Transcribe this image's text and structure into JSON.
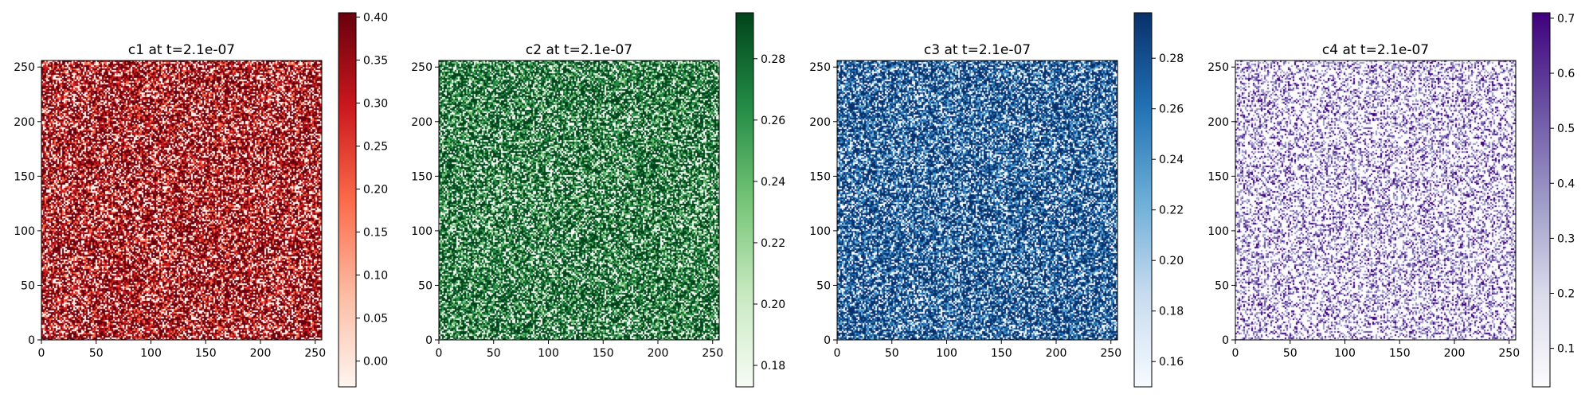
{
  "chart_data": [
    {
      "type": "heatmap",
      "title": "c1 at t=2.1e-07",
      "grid": false,
      "xlim": [
        0,
        256
      ],
      "ylim": [
        0,
        256
      ],
      "x_ticks": [
        "0",
        "50",
        "100",
        "150",
        "200",
        "250"
      ],
      "y_ticks": [
        "0",
        "50",
        "100",
        "150",
        "200",
        "250"
      ],
      "pattern": "fine random noise, mostly dark red with light pink speckles",
      "colormap": "Reds",
      "colors": [
        "#fff5f0",
        "#fcbba1",
        "#fb6a4a",
        "#cb181d",
        "#67000d"
      ],
      "colorbar": {
        "range": [
          -0.03,
          0.405
        ],
        "ticks": [
          0.0,
          0.05,
          0.1,
          0.15,
          0.2,
          0.25,
          0.3,
          0.35,
          0.4
        ],
        "tick_labels": [
          "0.00",
          "0.05",
          "0.10",
          "0.15",
          "0.20",
          "0.25",
          "0.30",
          "0.35",
          "0.40"
        ]
      }
    },
    {
      "type": "heatmap",
      "title": "c2 at t=2.1e-07",
      "grid": false,
      "xlim": [
        0,
        256
      ],
      "ylim": [
        0,
        256
      ],
      "x_ticks": [
        "0",
        "50",
        "100",
        "150",
        "200",
        "250"
      ],
      "y_ticks": [
        "0",
        "50",
        "100",
        "150",
        "200",
        "250"
      ],
      "pattern": "fine random noise, green and dark green speckles",
      "colormap": "Greens",
      "colors": [
        "#f7fcf5",
        "#c7e9c0",
        "#74c476",
        "#238b45",
        "#00441b"
      ],
      "colorbar": {
        "range": [
          0.173,
          0.295
        ],
        "ticks": [
          0.18,
          0.2,
          0.22,
          0.24,
          0.26,
          0.28
        ],
        "tick_labels": [
          "0.18",
          "0.20",
          "0.22",
          "0.24",
          "0.26",
          "0.28"
        ]
      }
    },
    {
      "type": "heatmap",
      "title": "c3 at t=2.1e-07",
      "grid": false,
      "xlim": [
        0,
        256
      ],
      "ylim": [
        0,
        256
      ],
      "x_ticks": [
        "0",
        "50",
        "100",
        "150",
        "200",
        "250"
      ],
      "y_ticks": [
        "0",
        "50",
        "100",
        "150",
        "200",
        "250"
      ],
      "pattern": "fine random noise, dark blue with light blue speckles",
      "colormap": "Blues",
      "colors": [
        "#f7fbff",
        "#c6dbef",
        "#6baed6",
        "#2171b5",
        "#08306b"
      ],
      "colorbar": {
        "range": [
          0.15,
          0.298
        ],
        "ticks": [
          0.16,
          0.18,
          0.2,
          0.22,
          0.24,
          0.26,
          0.28
        ],
        "tick_labels": [
          "0.16",
          "0.18",
          "0.20",
          "0.22",
          "0.24",
          "0.26",
          "0.28"
        ]
      }
    },
    {
      "type": "heatmap",
      "title": "c4 at t=2.1e-07",
      "grid": false,
      "xlim": [
        0,
        256
      ],
      "ylim": [
        0,
        256
      ],
      "x_ticks": [
        "0",
        "50",
        "100",
        "150",
        "200",
        "250"
      ],
      "y_ticks": [
        "0",
        "50",
        "100",
        "150",
        "200",
        "250"
      ],
      "pattern": "fine random noise, mostly white with purple speckles",
      "colormap": "Purples",
      "colors": [
        "#fcfbfd",
        "#dadaeb",
        "#9e9ac8",
        "#6a51a3",
        "#3f007d"
      ],
      "colorbar": {
        "range": [
          0.03,
          0.71
        ],
        "ticks": [
          0.1,
          0.2,
          0.3,
          0.4,
          0.5,
          0.6,
          0.7
        ],
        "tick_labels": [
          "0.1",
          "0.2",
          "0.3",
          "0.4",
          "0.5",
          "0.6",
          "0.7"
        ]
      }
    }
  ]
}
